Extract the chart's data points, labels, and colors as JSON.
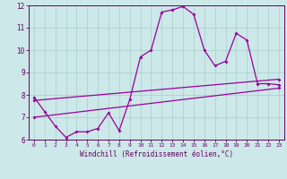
{
  "xlabel": "Windchill (Refroidissement éolien,°C)",
  "bg_color": "#cce8e8",
  "line_color": "#990099",
  "grid_color": "#aacccc",
  "xlim": [
    -0.5,
    23.5
  ],
  "ylim": [
    6,
    12
  ],
  "yticks": [
    6,
    7,
    8,
    9,
    10,
    11,
    12
  ],
  "xticks": [
    0,
    1,
    2,
    3,
    4,
    5,
    6,
    7,
    8,
    9,
    10,
    11,
    12,
    13,
    14,
    15,
    16,
    17,
    18,
    19,
    20,
    21,
    22,
    23
  ],
  "line1_x": [
    0,
    1,
    2,
    3,
    4,
    5,
    6,
    7,
    8,
    9,
    10,
    11,
    12,
    13,
    14,
    15,
    16,
    17,
    18,
    19,
    20,
    21,
    22,
    23
  ],
  "line1_y": [
    7.9,
    7.25,
    6.6,
    6.1,
    6.35,
    6.35,
    6.5,
    7.2,
    6.4,
    7.8,
    9.7,
    10.0,
    11.7,
    11.8,
    11.95,
    11.6,
    10.0,
    9.3,
    9.5,
    10.75,
    10.45,
    8.5,
    8.5,
    8.45
  ],
  "line2_x": [
    0,
    23
  ],
  "line2_y": [
    7.75,
    8.7
  ],
  "line3_x": [
    0,
    23
  ],
  "line3_y": [
    7.0,
    8.3
  ]
}
